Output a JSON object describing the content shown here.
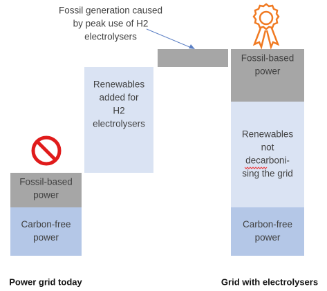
{
  "annotation": [
    "Fossil generation caused",
    "by peak use of H2",
    "electrolysers"
  ],
  "columns": [
    {
      "label": "Power grid today",
      "blocks": [
        {
          "kind": "fossil",
          "lines": [
            "Fossil-based",
            "power"
          ]
        },
        {
          "kind": "carbon-free",
          "lines": [
            "Carbon-free",
            "power"
          ]
        }
      ]
    },
    {
      "blocks": [
        {
          "kind": "renewables",
          "lines": [
            "Renewables",
            "added for",
            "H2",
            "electrolysers"
          ]
        }
      ]
    },
    {
      "blocks": [
        {
          "kind": "fossil",
          "lines": []
        }
      ]
    },
    {
      "label": "Grid with electrolysers",
      "blocks": [
        {
          "kind": "fossil",
          "lines": [
            "Fossil-based",
            "power"
          ]
        },
        {
          "kind": "renewables",
          "lines": [
            "Renewables",
            "not",
            "decarboni-",
            "sing the grid"
          ]
        },
        {
          "kind": "carbon-free",
          "lines": [
            "Carbon-free",
            "power"
          ]
        }
      ]
    }
  ]
}
